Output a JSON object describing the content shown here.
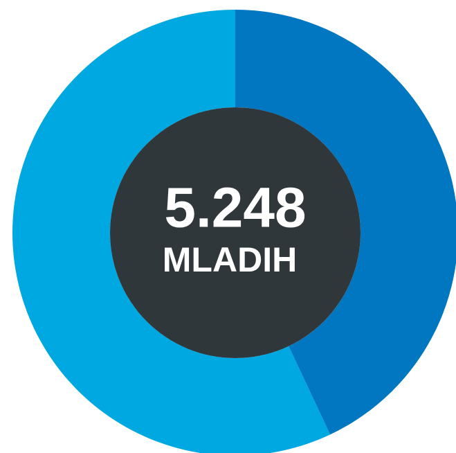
{
  "chart_data": {
    "type": "pie",
    "values": [
      43,
      57
    ],
    "colors": [
      "#0077c0",
      "#00a8e1"
    ],
    "center_color": "#30373b",
    "center_text": [
      "5.248",
      "MLADIH"
    ]
  }
}
